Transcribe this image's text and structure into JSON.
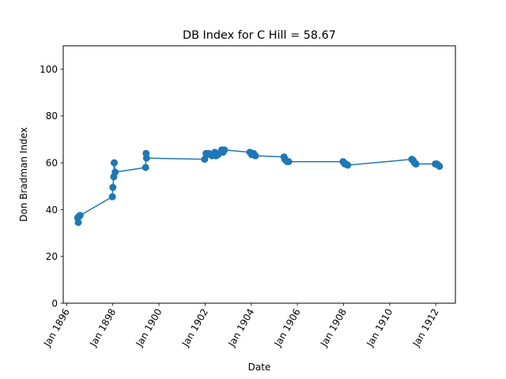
{
  "chart_data": {
    "type": "line",
    "title": "DB Index for C Hill = 58.67",
    "xlabel": "Date",
    "ylabel": "Don Bradman Index",
    "ylim": [
      0,
      110
    ],
    "xlim": [
      1895.85,
      1912.85
    ],
    "yticks": [
      0,
      20,
      40,
      60,
      80,
      100
    ],
    "xticks": [
      {
        "value": 1896.0,
        "label": "Jan 1896"
      },
      {
        "value": 1898.0,
        "label": "Jan 1898"
      },
      {
        "value": 1900.0,
        "label": "Jan 1900"
      },
      {
        "value": 1902.0,
        "label": "Jan 1902"
      },
      {
        "value": 1904.0,
        "label": "Jan 1904"
      },
      {
        "value": 1906.0,
        "label": "Jan 1906"
      },
      {
        "value": 1908.0,
        "label": "Jan 1908"
      },
      {
        "value": 1910.0,
        "label": "Jan 1910"
      },
      {
        "value": 1912.0,
        "label": "Jan 1912"
      }
    ],
    "grid": false,
    "color": "#1f77b4",
    "series": [
      {
        "name": "C Hill",
        "x": [
          1896.48,
          1896.5,
          1896.52,
          1896.58,
          1897.98,
          1898.0,
          1898.04,
          1898.06,
          1898.1,
          1899.42,
          1899.44,
          1899.46,
          1901.98,
          1902.04,
          1902.08,
          1902.16,
          1902.3,
          1902.42,
          1902.48,
          1902.56,
          1902.72,
          1902.78,
          1902.84,
          1903.94,
          1904.02,
          1904.1,
          1904.18,
          1905.42,
          1905.46,
          1905.5,
          1905.56,
          1905.62,
          1907.98,
          1908.02,
          1908.06,
          1908.1,
          1908.18,
          1910.96,
          1911.02,
          1911.08,
          1911.14,
          1911.98,
          1912.04,
          1912.1,
          1912.16
        ],
        "y": [
          36.5,
          34.5,
          37,
          37.5,
          45.5,
          49.5,
          54,
          60,
          56,
          58,
          64,
          62,
          61.5,
          64,
          63.5,
          64,
          63,
          64.5,
          63,
          63.5,
          65.5,
          64.5,
          65.5,
          64.5,
          63.5,
          64,
          63,
          62.5,
          61.5,
          61,
          60.5,
          60.5,
          60.5,
          60,
          59.5,
          59.5,
          59,
          61.5,
          61,
          60,
          59.5,
          59.5,
          59.5,
          59,
          58.5
        ]
      }
    ]
  }
}
